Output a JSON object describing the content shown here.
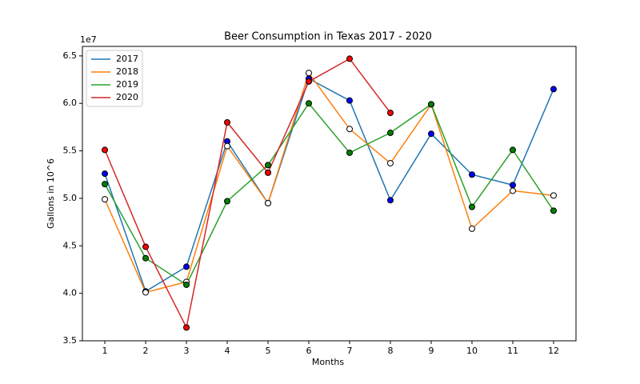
{
  "chart_data": {
    "type": "line",
    "title": "Beer Consumption in Texas 2017 - 2020",
    "x_label": "Months",
    "y_label": "Gallons in 10^6",
    "y_offset_label": "1e7",
    "x": [
      1,
      2,
      3,
      4,
      5,
      6,
      7,
      8,
      9,
      10,
      11,
      12
    ],
    "xlim": [
      0.45,
      12.55
    ],
    "xticks": [
      1,
      2,
      3,
      4,
      5,
      6,
      7,
      8,
      9,
      10,
      11,
      12
    ],
    "ylim": [
      3.5,
      6.6
    ],
    "yticks": [
      3.5,
      {
        "value": 4,
        "label": "4.0"
      },
      4.5,
      {
        "value": 5,
        "label": "5.0"
      },
      5.5,
      {
        "value": 6,
        "label": "6.0"
      },
      6.5
    ],
    "legend": "upper left",
    "series": [
      {
        "name": "2017",
        "color": "#1f77b4",
        "marker_color": "#0000ff",
        "values": [
          5.26,
          4.02,
          4.28,
          5.6,
          4.95,
          6.26,
          6.03,
          4.98,
          5.68,
          5.25,
          5.14,
          6.15
        ]
      },
      {
        "name": "2018",
        "color": "#ff7f0e",
        "marker_color": "#ffffff",
        "values": [
          4.99,
          4.01,
          4.12,
          5.55,
          4.95,
          6.32,
          5.73,
          5.37,
          5.99,
          4.68,
          5.08,
          5.03
        ]
      },
      {
        "name": "2019",
        "color": "#2ca02c",
        "marker_color": "#008000",
        "values": [
          5.15,
          4.37,
          4.09,
          4.97,
          5.35,
          6.0,
          5.48,
          5.69,
          5.99,
          4.91,
          5.51,
          4.87
        ]
      },
      {
        "name": "2020",
        "color": "#d62728",
        "marker_color": "#ff0000",
        "values": [
          5.51,
          4.49,
          3.64,
          5.8,
          5.27,
          6.23,
          6.47,
          5.9,
          null,
          null,
          null,
          null
        ]
      }
    ]
  }
}
